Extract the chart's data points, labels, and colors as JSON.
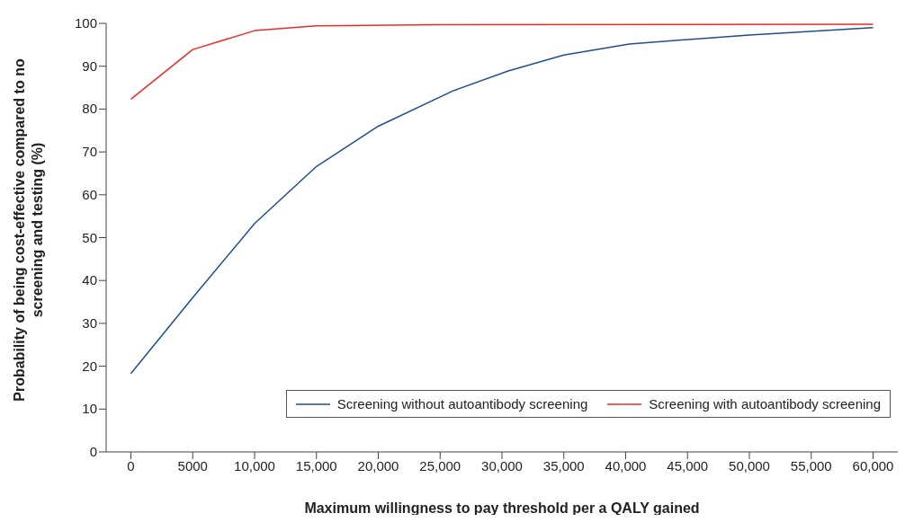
{
  "chart_data": {
    "type": "line",
    "xlabel": "Maximum willingness to pay threshold per a QALY gained",
    "ylabel": "Probability of being cost-effective compared to no screening and testing (%)",
    "xlim": [
      -2000,
      62000
    ],
    "xticks": [
      {
        "value": 0,
        "label": "0"
      },
      {
        "value": 5000,
        "label": "5000"
      },
      {
        "value": 10000,
        "label": "10,000"
      },
      {
        "value": 15000,
        "label": "15,000"
      },
      {
        "value": 20000,
        "label": "20,000"
      },
      {
        "value": 25000,
        "label": "25,000"
      },
      {
        "value": 30000,
        "label": "30,000"
      },
      {
        "value": 35000,
        "label": "35,000"
      },
      {
        "value": 40000,
        "label": "40,000"
      },
      {
        "value": 45000,
        "label": "45,000"
      },
      {
        "value": 50000,
        "label": "50,000"
      },
      {
        "value": 55000,
        "label": "55,000"
      },
      {
        "value": 60000,
        "label": "60,000"
      }
    ],
    "ylim": [
      0,
      100
    ],
    "yticks": [
      0,
      10,
      20,
      30,
      40,
      50,
      60,
      70,
      80,
      90,
      100
    ],
    "legend": "bottom",
    "marker": "none",
    "line_style": "solid",
    "series": [
      {
        "name": "Screening without autoantibody screening",
        "color": "#1f4e8c",
        "x": [
          0,
          5000,
          10000,
          15000,
          20000,
          26000,
          30500,
          35000,
          40300,
          50000,
          60000
        ],
        "values": [
          18.3,
          36,
          53.3,
          66.6,
          76,
          84.2,
          88.9,
          92.6,
          95.2,
          97.3,
          99
        ]
      },
      {
        "name": "Screening with autoantibody screening",
        "color": "#ee2a2a",
        "x": [
          0,
          5000,
          10000,
          15000,
          25000,
          60000
        ],
        "values": [
          82.3,
          93.9,
          98.3,
          99.4,
          99.7,
          99.8
        ]
      }
    ]
  }
}
